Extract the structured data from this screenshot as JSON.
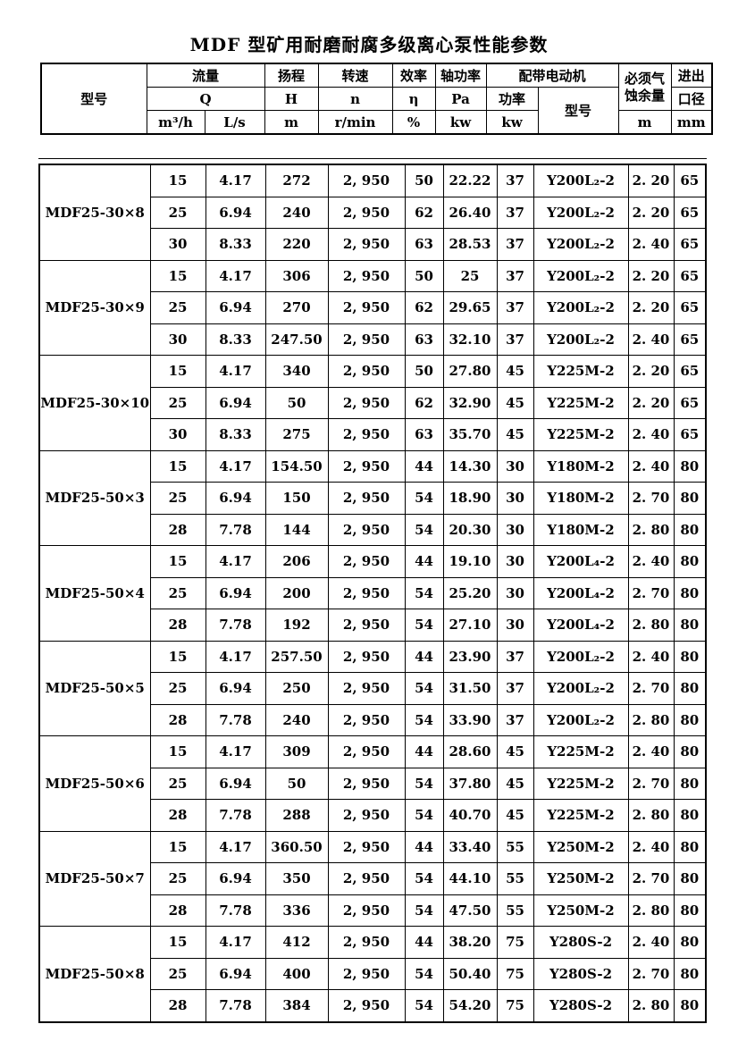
{
  "title": "MDF 型矿用耐磨耐腐多级离心泵性能参数",
  "header": {
    "pump_model": "型号",
    "flow": "流量",
    "flow_symbol": "Q",
    "flow_unit_m3h": "m³/h",
    "flow_unit_ls": "L/s",
    "head": "扬程",
    "head_symbol": "H",
    "head_unit": "m",
    "speed": "转速",
    "speed_symbol": "n",
    "speed_unit": "r/min",
    "efficiency": "效率",
    "efficiency_symbol": "η",
    "efficiency_unit": "%",
    "shaft_power": "轴功率",
    "shaft_power_symbol": "Pa",
    "shaft_power_unit": "kw",
    "motor": "配带电动机",
    "motor_power": "功率",
    "motor_power_unit": "kw",
    "motor_model": "型号",
    "npsh_line1": "必须气",
    "npsh_line2": "蚀余量",
    "npsh_unit": "m",
    "port_line1": "进出",
    "port_line2": "口径",
    "port_unit": "mm"
  },
  "chart_data": {
    "type": "table",
    "title": "MDF 型矿用耐磨耐腐多级离心泵性能参数",
    "columns": [
      "型号",
      "Q m³/h",
      "Q L/s",
      "H m",
      "n r/min",
      "η %",
      "Pa kw",
      "功率 kw",
      "电动机型号",
      "必须气蚀余量 m",
      "进出口径 mm"
    ],
    "groups": [
      {
        "model": "MDF25-30×8",
        "rows": [
          [
            "15",
            "4.17",
            "272",
            "2, 950",
            "50",
            "22.22",
            "37",
            "Y200L₂-2",
            "2. 20",
            "65"
          ],
          [
            "25",
            "6.94",
            "240",
            "2, 950",
            "62",
            "26.40",
            "37",
            "Y200L₂-2",
            "2. 20",
            "65"
          ],
          [
            "30",
            "8.33",
            "220",
            "2, 950",
            "63",
            "28.53",
            "37",
            "Y200L₂-2",
            "2. 40",
            "65"
          ]
        ]
      },
      {
        "model": "MDF25-30×9",
        "rows": [
          [
            "15",
            "4.17",
            "306",
            "2, 950",
            "50",
            "25",
            "37",
            "Y200L₂-2",
            "2. 20",
            "65"
          ],
          [
            "25",
            "6.94",
            "270",
            "2, 950",
            "62",
            "29.65",
            "37",
            "Y200L₂-2",
            "2. 20",
            "65"
          ],
          [
            "30",
            "8.33",
            "247.50",
            "2, 950",
            "63",
            "32.10",
            "37",
            "Y200L₂-2",
            "2. 40",
            "65"
          ]
        ]
      },
      {
        "model": "MDF25-30×10",
        "rows": [
          [
            "15",
            "4.17",
            "340",
            "2, 950",
            "50",
            "27.80",
            "45",
            "Y225M-2",
            "2. 20",
            "65"
          ],
          [
            "25",
            "6.94",
            "50",
            "2, 950",
            "62",
            "32.90",
            "45",
            "Y225M-2",
            "2. 20",
            "65"
          ],
          [
            "30",
            "8.33",
            "275",
            "2, 950",
            "63",
            "35.70",
            "45",
            "Y225M-2",
            "2. 40",
            "65"
          ]
        ]
      },
      {
        "model": "MDF25-50×3",
        "rows": [
          [
            "15",
            "4.17",
            "154.50",
            "2, 950",
            "44",
            "14.30",
            "30",
            "Y180M-2",
            "2. 40",
            "80"
          ],
          [
            "25",
            "6.94",
            "150",
            "2, 950",
            "54",
            "18.90",
            "30",
            "Y180M-2",
            "2. 70",
            "80"
          ],
          [
            "28",
            "7.78",
            "144",
            "2, 950",
            "54",
            "20.30",
            "30",
            "Y180M-2",
            "2. 80",
            "80"
          ]
        ]
      },
      {
        "model": "MDF25-50×4",
        "rows": [
          [
            "15",
            "4.17",
            "206",
            "2, 950",
            "44",
            "19.10",
            "30",
            "Y200L₄-2",
            "2. 40",
            "80"
          ],
          [
            "25",
            "6.94",
            "200",
            "2, 950",
            "54",
            "25.20",
            "30",
            "Y200L₄-2",
            "2. 70",
            "80"
          ],
          [
            "28",
            "7.78",
            "192",
            "2, 950",
            "54",
            "27.10",
            "30",
            "Y200L₄-2",
            "2. 80",
            "80"
          ]
        ]
      },
      {
        "model": "MDF25-50×5",
        "rows": [
          [
            "15",
            "4.17",
            "257.50",
            "2, 950",
            "44",
            "23.90",
            "37",
            "Y200L₂-2",
            "2. 40",
            "80"
          ],
          [
            "25",
            "6.94",
            "250",
            "2, 950",
            "54",
            "31.50",
            "37",
            "Y200L₂-2",
            "2. 70",
            "80"
          ],
          [
            "28",
            "7.78",
            "240",
            "2, 950",
            "54",
            "33.90",
            "37",
            "Y200L₂-2",
            "2. 80",
            "80"
          ]
        ]
      },
      {
        "model": "MDF25-50×6",
        "rows": [
          [
            "15",
            "4.17",
            "309",
            "2, 950",
            "44",
            "28.60",
            "45",
            "Y225M-2",
            "2. 40",
            "80"
          ],
          [
            "25",
            "6.94",
            "50",
            "2, 950",
            "54",
            "37.80",
            "45",
            "Y225M-2",
            "2. 70",
            "80"
          ],
          [
            "28",
            "7.78",
            "288",
            "2, 950",
            "54",
            "40.70",
            "45",
            "Y225M-2",
            "2. 80",
            "80"
          ]
        ]
      },
      {
        "model": "MDF25-50×7",
        "rows": [
          [
            "15",
            "4.17",
            "360.50",
            "2, 950",
            "44",
            "33.40",
            "55",
            "Y250M-2",
            "2. 40",
            "80"
          ],
          [
            "25",
            "6.94",
            "350",
            "2, 950",
            "54",
            "44.10",
            "55",
            "Y250M-2",
            "2. 70",
            "80"
          ],
          [
            "28",
            "7.78",
            "336",
            "2, 950",
            "54",
            "47.50",
            "55",
            "Y250M-2",
            "2. 80",
            "80"
          ]
        ]
      },
      {
        "model": "MDF25-50×8",
        "rows": [
          [
            "15",
            "4.17",
            "412",
            "2, 950",
            "44",
            "38.20",
            "75",
            "Y280S-2",
            "2. 40",
            "80"
          ],
          [
            "25",
            "6.94",
            "400",
            "2, 950",
            "54",
            "50.40",
            "75",
            "Y280S-2",
            "2. 70",
            "80"
          ],
          [
            "28",
            "7.78",
            "384",
            "2, 950",
            "54",
            "54.20",
            "75",
            "Y280S-2",
            "2. 80",
            "80"
          ]
        ]
      }
    ]
  }
}
